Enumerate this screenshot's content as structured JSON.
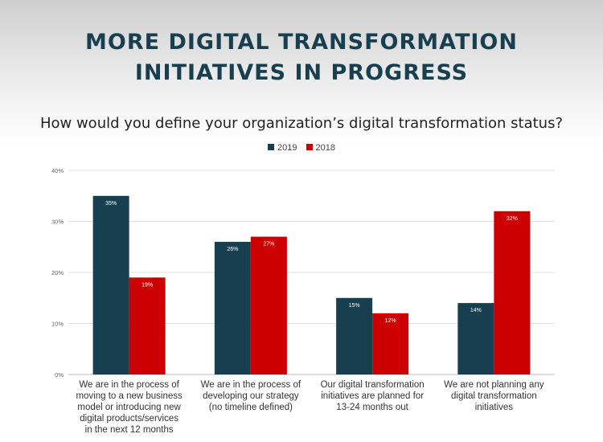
{
  "header": {
    "title_line1": "MORE DIGITAL TRANSFORMATION",
    "title_line2": "INITIATIVES IN PROGRESS",
    "subtitle": "How would you define your organization’s digital transformation status?"
  },
  "colors": {
    "series_2019": "#173f4f",
    "series_2018": "#cc0000",
    "grid": "#e0e0e0",
    "title": "#173f4f"
  },
  "chart_data": {
    "type": "bar",
    "categories": [
      "We are in the process of moving to a new business model or introducing new digital products/services in the next 12 months",
      "We are in the process of developing our strategy (no timeline defined)",
      "Our digital transformation initiatives are planned for 13-24 months out",
      "We are not planning any digital transformation initiatives"
    ],
    "category_lines": [
      [
        "We are in the process of",
        "moving to a new business",
        "model or introducing new",
        "digital products/services",
        "in the next 12 months"
      ],
      [
        "We are in the process of",
        "developing our strategy",
        "(no timeline defined)"
      ],
      [
        "Our digital transformation",
        "initiatives are planned for",
        "13-24 months out"
      ],
      [
        "We are not planning any",
        "digital transformation",
        "initiatives"
      ]
    ],
    "series": [
      {
        "name": "2019",
        "values": [
          35,
          26,
          15,
          14
        ],
        "labels": [
          "35%",
          "26%",
          "15%",
          "14%"
        ],
        "color": "#173f4f"
      },
      {
        "name": "2018",
        "values": [
          19,
          27,
          12,
          32
        ],
        "labels": [
          "19%",
          "27%",
          "12%",
          "32%"
        ],
        "color": "#cc0000"
      }
    ],
    "title": "How would you define your organization’s digital transformation status?",
    "xlabel": "",
    "ylabel": "",
    "ylim": [
      0,
      40
    ],
    "yticks": [
      0,
      10,
      20,
      30,
      40
    ],
    "ytick_labels": [
      "0%",
      "10%",
      "20%",
      "30%",
      "40%"
    ],
    "grid": true,
    "legend": "top-center"
  }
}
